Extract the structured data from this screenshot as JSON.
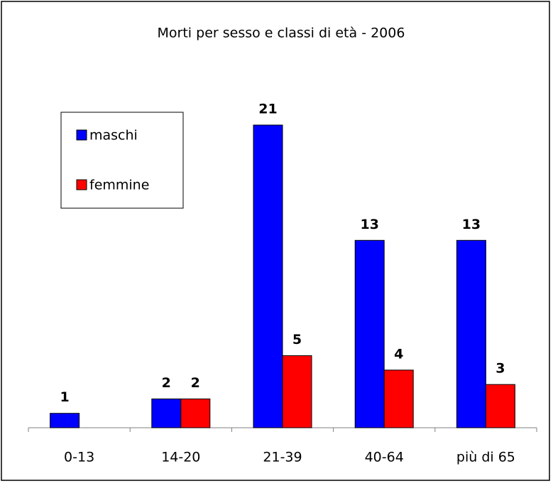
{
  "chart_data": {
    "type": "bar",
    "title": "Morti per sesso e classi di età - 2006",
    "categories": [
      "0-13",
      "14-20",
      "21-39",
      "40-64",
      "più di 65"
    ],
    "series": [
      {
        "name": "maschi",
        "color": "#0000ff",
        "values": [
          1,
          2,
          21,
          13,
          13
        ]
      },
      {
        "name": "femmine",
        "color": "#ff0000",
        "values": [
          null,
          2,
          5,
          4,
          3
        ]
      }
    ]
  }
}
